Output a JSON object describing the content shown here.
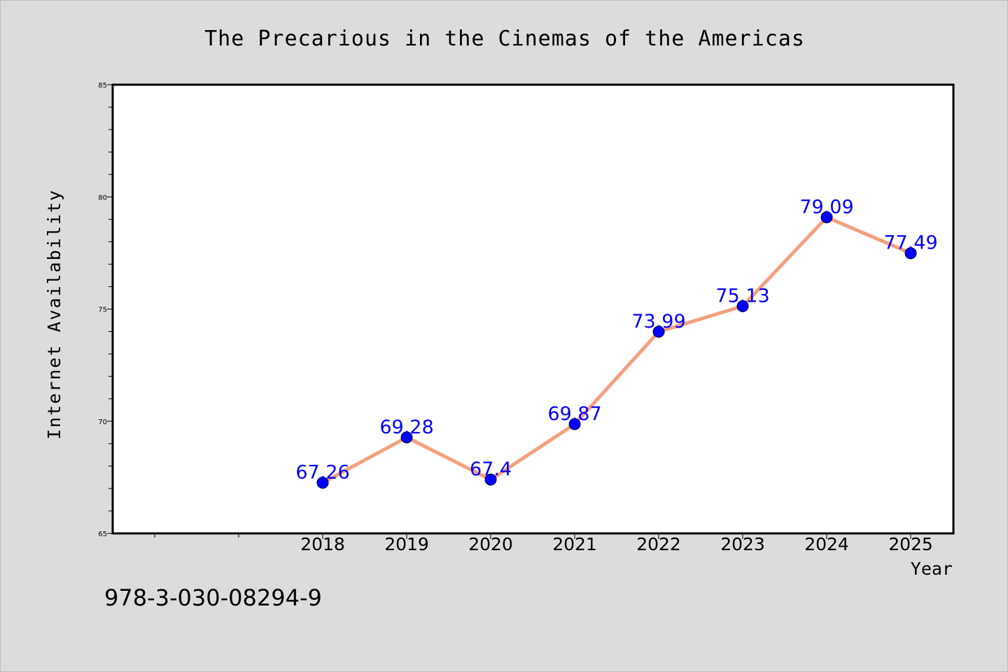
{
  "chart_data": {
    "type": "line",
    "title": "The Precarious in the Cinemas of the Americas",
    "xlabel": "Year",
    "ylabel": "Internet Availability",
    "categories": [
      "2018",
      "2019",
      "2020",
      "2021",
      "2022",
      "2023",
      "2024",
      "2025"
    ],
    "series": [
      {
        "values": [
          67.26,
          69.28,
          67.4,
          69.87,
          73.99,
          75.13,
          79.09,
          77.49
        ],
        "data_labels": [
          "67.26",
          "69.28",
          "67.4",
          "69.87",
          "73.99",
          "75.13",
          "79.09",
          "77.49"
        ]
      }
    ],
    "ylim": [
      65,
      85
    ],
    "y_ticks": [
      "65",
      "70",
      "75",
      "80",
      "85"
    ],
    "x_slots_before_first_category": 2,
    "grid": false,
    "legend": "none"
  },
  "footer_text": "978-3-030-08294-9",
  "colors": {
    "background": "#dcdcdc",
    "plot_background": "#ffffff",
    "line": "#f4a07f",
    "marker": "#0000ff",
    "data_label": "#0000ff",
    "axis": "#000000"
  }
}
